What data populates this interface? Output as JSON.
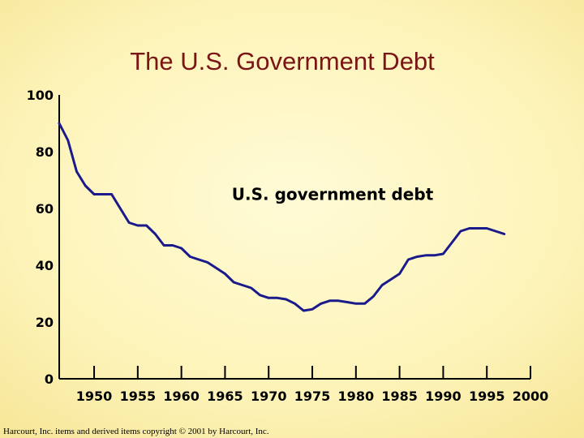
{
  "chart_data": {
    "type": "line",
    "title": "The U.S. Government Debt",
    "xlabel": "",
    "ylabel": "",
    "xlim": [
      1946,
      2000
    ],
    "ylim": [
      0,
      100
    ],
    "x_ticks": [
      1950,
      1955,
      1960,
      1965,
      1970,
      1975,
      1980,
      1985,
      1990,
      1995,
      2000
    ],
    "y_ticks": [
      0,
      20,
      40,
      60,
      80,
      100
    ],
    "grid": false,
    "series": [
      {
        "name": "U.S. government debt",
        "color": "#1a1a8c",
        "x": [
          1946,
          1947,
          1948,
          1949,
          1950,
          1951,
          1952,
          1953,
          1954,
          1955,
          1956,
          1957,
          1958,
          1959,
          1960,
          1961,
          1962,
          1963,
          1964,
          1965,
          1966,
          1967,
          1968,
          1969,
          1970,
          1971,
          1972,
          1973,
          1974,
          1975,
          1976,
          1977,
          1978,
          1979,
          1980,
          1981,
          1982,
          1983,
          1984,
          1985,
          1986,
          1987,
          1988,
          1989,
          1990,
          1991,
          1992,
          1993,
          1994,
          1995,
          1996,
          1997
        ],
        "y": [
          90,
          84,
          73,
          68,
          65,
          65,
          65,
          60,
          55,
          54,
          54,
          51,
          47,
          47,
          46,
          43,
          42,
          41,
          39,
          37,
          34,
          33,
          32,
          29.5,
          28.5,
          28.5,
          28,
          26.5,
          24,
          24.5,
          26.5,
          27.5,
          27.5,
          27,
          26.5,
          26.5,
          29,
          33,
          35,
          37,
          42,
          43,
          43.5,
          43.5,
          44,
          48,
          52,
          53,
          53,
          53,
          52,
          51
        ]
      }
    ],
    "annotations": [
      {
        "text": "U.S. government debt",
        "x": 1975,
        "y": 65
      }
    ]
  },
  "footer": {
    "copyright": "Harcourt, Inc. items and derived items copyright © 2001 by Harcourt, Inc."
  }
}
